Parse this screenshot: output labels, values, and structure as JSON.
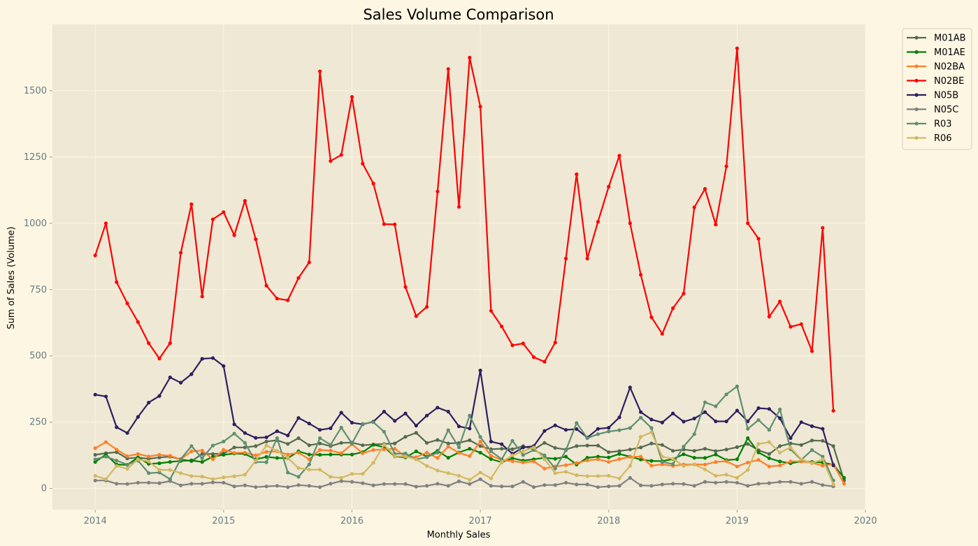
{
  "chart_data": {
    "type": "line",
    "title": "Sales Volume Comparison",
    "xlabel": "Monthly Sales",
    "ylabel": "Sum of Sales (Volume)",
    "x_start": "2014-01",
    "xlim": [
      "2013-09",
      "2020-01"
    ],
    "ylim": [
      -80,
      1750
    ],
    "xticks": [
      {
        "value": "2014-01",
        "label": "2014"
      },
      {
        "value": "2015-01",
        "label": "2015"
      },
      {
        "value": "2016-01",
        "label": "2016"
      },
      {
        "value": "2017-01",
        "label": "2017"
      },
      {
        "value": "2018-01",
        "label": "2018"
      },
      {
        "value": "2019-01",
        "label": "2019"
      },
      {
        "value": "2020-01",
        "label": "2020"
      }
    ],
    "yticks": [
      0,
      250,
      500,
      750,
      1000,
      1250,
      1500
    ],
    "grid": true,
    "legend_position": "outside-top-right",
    "series": [
      {
        "name": "M01AB",
        "color": "#556b4f",
        "values": [
          127,
          133,
          137,
          113,
          117,
          112,
          117,
          120,
          110,
          103,
          130,
          130,
          132,
          155,
          155,
          160,
          177,
          182,
          168,
          190,
          163,
          170,
          160,
          172,
          173,
          163,
          166,
          168,
          170,
          195,
          210,
          172,
          183,
          170,
          172,
          182,
          160,
          148,
          150,
          148,
          160,
          147,
          172,
          153,
          147,
          160,
          162,
          162,
          137,
          141,
          147,
          155,
          170,
          164,
          142,
          147,
          142,
          150,
          141,
          147,
          156,
          168,
          144,
          130,
          160,
          170,
          164,
          181,
          180,
          160,
          30
        ]
      },
      {
        "name": "M01AE",
        "color": "#008000",
        "values": [
          100,
          128,
          90,
          89,
          117,
          93,
          95,
          100,
          104,
          106,
          100,
          120,
          127,
          132,
          130,
          110,
          119,
          115,
          114,
          140,
          128,
          127,
          128,
          128,
          128,
          137,
          165,
          156,
          121,
          117,
          140,
          120,
          142,
          116,
          136,
          150,
          135,
          111,
          99,
          114,
          105,
          110,
          116,
          112,
          120,
          90,
          116,
          120,
          117,
          130,
          120,
          109,
          104,
          103,
          111,
          129,
          116,
          115,
          128,
          107,
          110,
          190,
          136,
          114,
          102,
          95,
          102,
          100,
          98,
          90,
          40
        ]
      },
      {
        "name": "N02BA",
        "color": "#ff7f27",
        "values": [
          152,
          175,
          147,
          122,
          130,
          121,
          127,
          123,
          110,
          140,
          143,
          110,
          146,
          134,
          135,
          125,
          138,
          140,
          128,
          135,
          110,
          145,
          143,
          133,
          167,
          133,
          145,
          147,
          150,
          120,
          118,
          135,
          115,
          158,
          134,
          122,
          177,
          123,
          108,
          103,
          98,
          102,
          75,
          83,
          88,
          96,
          106,
          110,
          100,
          111,
          119,
          120,
          86,
          91,
          85,
          90,
          91,
          90,
          100,
          103,
          83,
          98,
          108,
          83,
          87,
          102,
          102,
          97,
          86,
          92,
          18
        ]
      },
      {
        "name": "N02BE",
        "color": "#ff0000",
        "values": [
          879,
          1000,
          778,
          698,
          628,
          548,
          490,
          548,
          889,
          1072,
          724,
          1015,
          1042,
          955,
          1085,
          940,
          765,
          716,
          710,
          794,
          853,
          1573,
          1235,
          1258,
          1477,
          1225,
          1150,
          997,
          996,
          760,
          650,
          685,
          1120,
          1582,
          1062,
          1625,
          1440,
          670,
          611,
          540,
          547,
          495,
          478,
          550,
          867,
          1185,
          867,
          1006,
          1138,
          1255,
          1000,
          806,
          646,
          583,
          680,
          735,
          1060,
          1130,
          995,
          1215,
          1660,
          1000,
          942,
          648,
          705,
          610,
          620,
          518,
          983,
          293
        ]
      },
      {
        "name": "N05B",
        "color": "#2e1f5e",
        "values": [
          354,
          347,
          231,
          209,
          270,
          324,
          349,
          419,
          399,
          431,
          489,
          492,
          462,
          242,
          209,
          191,
          193,
          216,
          200,
          266,
          245,
          221,
          227,
          286,
          248,
          242,
          252,
          290,
          255,
          283,
          237,
          275,
          305,
          290,
          234,
          226,
          445,
          177,
          167,
          131,
          155,
          160,
          217,
          238,
          221,
          224,
          192,
          225,
          229,
          268,
          381,
          288,
          260,
          249,
          283,
          252,
          264,
          288,
          253,
          253,
          294,
          253,
          303,
          300,
          265,
          190,
          250,
          235,
          225,
          87
        ]
      },
      {
        "name": "N05C",
        "color": "#808080",
        "values": [
          30,
          30,
          18,
          17,
          22,
          22,
          20,
          28,
          12,
          18,
          18,
          23,
          22,
          8,
          12,
          5,
          8,
          10,
          5,
          13,
          10,
          5,
          18,
          28,
          25,
          20,
          12,
          17,
          17,
          17,
          7,
          10,
          18,
          10,
          27,
          17,
          35,
          10,
          8,
          8,
          25,
          5,
          13,
          13,
          22,
          15,
          15,
          5,
          8,
          10,
          40,
          12,
          10,
          15,
          18,
          17,
          10,
          25,
          22,
          25,
          22,
          10,
          18,
          20,
          25,
          25,
          18,
          25,
          13,
          8
        ]
      },
      {
        "name": "R03",
        "color": "#5f8f70",
        "values": [
          110,
          120,
          105,
          90,
          105,
          58,
          60,
          35,
          111,
          160,
          114,
          162,
          177,
          207,
          172,
          100,
          99,
          190,
          60,
          44,
          91,
          190,
          165,
          230,
          170,
          244,
          250,
          214,
          131,
          132,
          110,
          118,
          135,
          220,
          155,
          275,
          194,
          140,
          110,
          180,
          126,
          145,
          125,
          75,
          144,
          247,
          190,
          205,
          215,
          220,
          228,
          267,
          228,
          100,
          92,
          158,
          205,
          325,
          310,
          355,
          385,
          225,
          258,
          221,
          298,
          148,
          108,
          145,
          120,
          30
        ]
      },
      {
        "name": "R06",
        "color": "#d4b860",
        "values": [
          48,
          35,
          85,
          74,
          110,
          102,
          70,
          70,
          58,
          47,
          45,
          35,
          42,
          46,
          52,
          105,
          162,
          142,
          115,
          77,
          71,
          71,
          44,
          40,
          55,
          55,
          97,
          165,
          122,
          121,
          110,
          85,
          68,
          58,
          48,
          33,
          60,
          38,
          100,
          125,
          140,
          155,
          110,
          58,
          63,
          50,
          47,
          47,
          48,
          38,
          85,
          195,
          212,
          120,
          112,
          85,
          90,
          72,
          48,
          52,
          40,
          70,
          168,
          175,
          135,
          155,
          110,
          95,
          110,
          15
        ]
      }
    ]
  }
}
